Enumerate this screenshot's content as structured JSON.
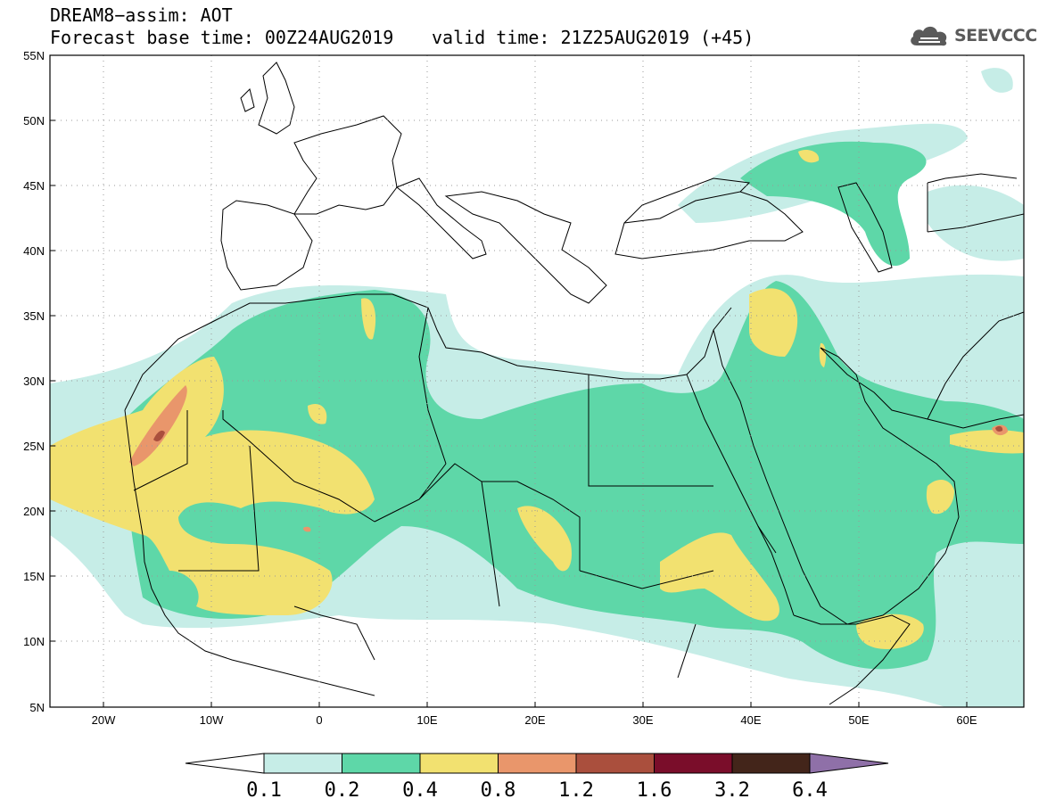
{
  "title": {
    "line1": "DREAM8−assim: AOT",
    "line2": "Forecast base time: 00Z24AUG2019",
    "line2b": "valid time: 21Z25AUG2019 (+45)"
  },
  "logo": {
    "text": "SEEVCCC",
    "icon": "cloud-icon"
  },
  "map": {
    "lat_labels": [
      "55N",
      "50N",
      "45N",
      "40N",
      "35N",
      "30N",
      "25N",
      "20N",
      "15N",
      "10N",
      "5N"
    ],
    "lon_labels": [
      "20W",
      "10W",
      "0",
      "10E",
      "20E",
      "30E",
      "40E",
      "50E",
      "60E"
    ]
  },
  "colorbar": {
    "colors": [
      "#c6ede7",
      "#5ed7a8",
      "#f2e170",
      "#e9966b",
      "#aa4f3d",
      "#7a0d2a",
      "#43251a",
      "#8f70a8"
    ],
    "under_color": "#ffffff",
    "labels": [
      "0.1",
      "0.2",
      "0.4",
      "0.8",
      "1.2",
      "1.6",
      "3.2",
      "6.4"
    ]
  }
}
